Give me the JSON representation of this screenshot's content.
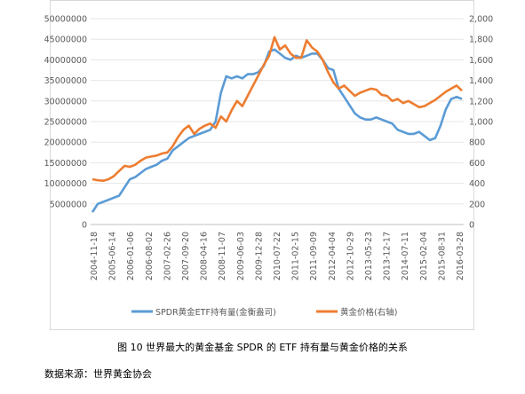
{
  "caption": "图 10 世界最大的黄金基金 SPDR 的 ETF 持有量与黄金价格的关系",
  "source": "数据来源：世界黄金协会",
  "chart_data": {
    "type": "line",
    "title": "",
    "y_left": {
      "min": 0,
      "max": 50000000,
      "ticks": [
        "0",
        "5000000",
        "10000000",
        "15000000",
        "20000000",
        "25000000",
        "30000000",
        "35000000",
        "40000000",
        "45000000",
        "50000000"
      ]
    },
    "y_right": {
      "min": 0,
      "max": 2000,
      "ticks": [
        "0",
        "200",
        "400",
        "600",
        "800",
        "1,000",
        "1,200",
        "1,400",
        "1,600",
        "1,800",
        "2,000"
      ]
    },
    "x_ticks": [
      "2004-11-18",
      "2005-06-14",
      "2006-01-06",
      "2006-08-02",
      "2007-02-26",
      "2007-09-20",
      "2008-04-16",
      "2008-11-07",
      "2009-06-03",
      "2009-12-28",
      "2010-07-22",
      "2011-02-15",
      "2011-09-09",
      "2012-04-04",
      "2012-10-29",
      "2013-05-23",
      "2013-12-17",
      "2014-07-11",
      "2015-02-04",
      "2015-08-31",
      "2016-03-28"
    ],
    "series": [
      {
        "name": "SPDR黄金ETF持有量(金衡盎司)",
        "axis": "left",
        "color": "#5b9bd5",
        "values": [
          3000000,
          5000000,
          5500000,
          6000000,
          6500000,
          7000000,
          9000000,
          11000000,
          11500000,
          12500000,
          13500000,
          14000000,
          14500000,
          15500000,
          16000000,
          18000000,
          19000000,
          20000000,
          21000000,
          21500000,
          22000000,
          22500000,
          23000000,
          25000000,
          32000000,
          36000000,
          35500000,
          36000000,
          35500000,
          36500000,
          36500000,
          37000000,
          38500000,
          42000000,
          42500000,
          41500000,
          40500000,
          40000000,
          41000000,
          40500000,
          41000000,
          41500000,
          41500000,
          40000000,
          38000000,
          37500000,
          33000000,
          31000000,
          29000000,
          27000000,
          26000000,
          25500000,
          25500000,
          26000000,
          25500000,
          25000000,
          24500000,
          23000000,
          22500000,
          22000000,
          22000000,
          22500000,
          21500000,
          20500000,
          21000000,
          24000000,
          28000000,
          30500000,
          31000000,
          30500000
        ]
      },
      {
        "name": "黄金价格(右轴)",
        "axis": "right",
        "color": "#ed7d31",
        "values": [
          440,
          430,
          425,
          440,
          470,
          520,
          570,
          560,
          580,
          620,
          650,
          660,
          670,
          690,
          700,
          760,
          850,
          920,
          960,
          880,
          930,
          960,
          980,
          940,
          1050,
          1000,
          1110,
          1200,
          1150,
          1250,
          1350,
          1450,
          1550,
          1640,
          1820,
          1700,
          1740,
          1660,
          1620,
          1620,
          1790,
          1720,
          1680,
          1600,
          1480,
          1380,
          1320,
          1350,
          1300,
          1250,
          1280,
          1300,
          1320,
          1310,
          1260,
          1250,
          1200,
          1220,
          1180,
          1200,
          1170,
          1140,
          1150,
          1180,
          1210,
          1250,
          1290,
          1320,
          1350,
          1300
        ]
      }
    ],
    "legend": "bottom"
  }
}
